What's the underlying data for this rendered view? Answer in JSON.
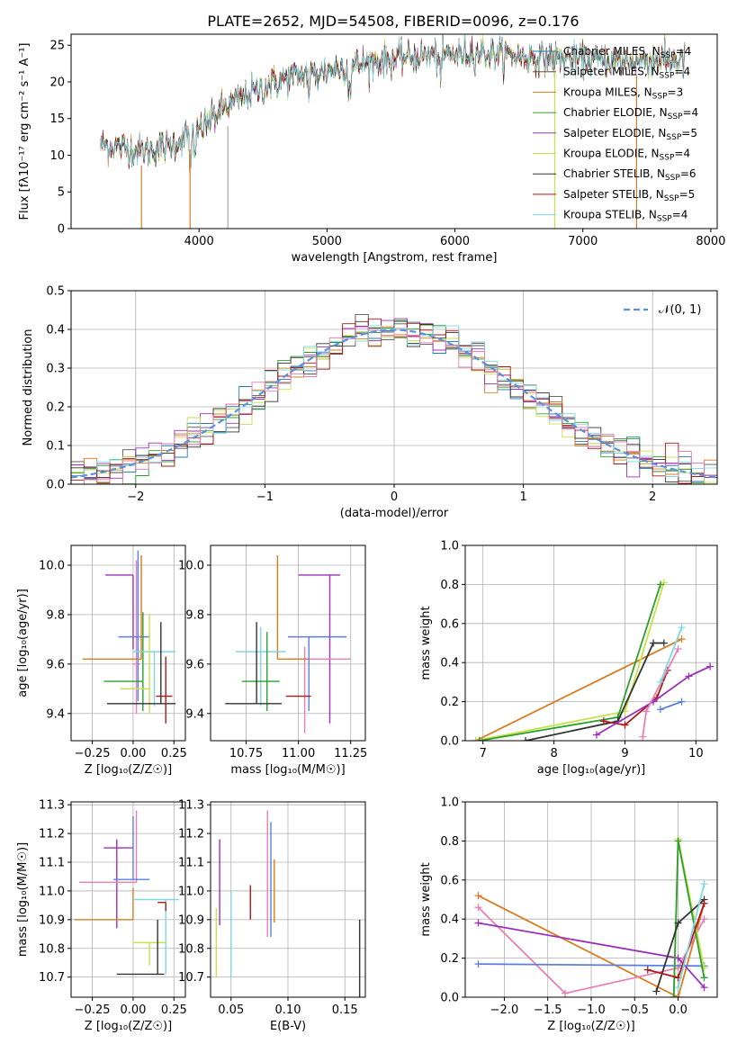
{
  "title": "PLATE=2652, MJD=54508, FIBERID=0096, z=0.176",
  "colors": {
    "chab_miles": "#1f77b4",
    "salp_miles": "#555555",
    "krou_miles": "#d97b1f",
    "chab_elodie": "#2ca02c",
    "salp_elodie": "#9b30b8",
    "krou_elodie": "#c8e04a",
    "chab_stelib": "#333333",
    "salp_stelib": "#b01818",
    "krou_stelib": "#7fd8e0",
    "pink": "#e77fb6",
    "blue": "#5b7fe0",
    "gauss": "#5b8fe0"
  },
  "chart_data": [
    {
      "type": "line",
      "id": "spectrum",
      "title": "PLATE=2652, MJD=54508, FIBERID=0096, z=0.176",
      "xlabel": "wavelength [Angstrom, rest frame]",
      "ylabel": "Flux [fλ10⁻¹⁷ erg cm⁻² s⁻¹ A⁻¹]",
      "xlim": [
        3000,
        8050
      ],
      "ylim": [
        0,
        26.5
      ],
      "xticks": [
        "4000",
        "5000",
        "6000",
        "7000",
        "8000"
      ],
      "yticks": [
        "0",
        "5",
        "10",
        "15",
        "20",
        "25"
      ],
      "legend_position": "right",
      "legend": [
        "Chabrier MILES, N_SSP=4",
        "Salpeter MILES, N_SSP=4",
        "Kroupa MILES, N_SSP=3",
        "Chabrier ELODIE, N_SSP=4",
        "Salpeter ELODIE, N_SSP=5",
        "Kroupa ELODIE, N_SSP=4",
        "Chabrier STELIB, N_SSP=6",
        "Salpeter STELIB, N_SSP=5",
        "Kroupa STELIB, N_SSP=4"
      ],
      "continuum": {
        "x": [
          3200,
          3400,
          3600,
          3800,
          4000,
          4200,
          4400,
          4600,
          4800,
          5000,
          5200,
          5400,
          5600,
          5800,
          6000,
          6200,
          6400,
          6600,
          6800,
          7000,
          7200,
          7400,
          7600,
          7800
        ],
        "y": [
          11.5,
          11.0,
          10.5,
          11.5,
          13.5,
          16.5,
          18.5,
          20.0,
          21.0,
          21.5,
          22.2,
          22.8,
          23.3,
          23.6,
          23.8,
          24.0,
          23.7,
          23.4,
          23.2,
          23.0,
          22.9,
          22.8,
          23.0,
          22.7
        ]
      },
      "drops": [
        3550,
        3930,
        6780,
        7420
      ]
    },
    {
      "type": "bar",
      "id": "residuals",
      "xlabel": "(data-model)/error",
      "ylabel": "Normed distribution",
      "xlim": [
        -2.5,
        2.5
      ],
      "ylim": [
        0,
        0.5
      ],
      "xticks": [
        "−2",
        "−1",
        "0",
        "1",
        "2"
      ],
      "yticks": [
        "0.0",
        "0.1",
        "0.2",
        "0.3",
        "0.4",
        "0.5"
      ],
      "bin_width": 0.1,
      "legend": [
        "𝒩(0, 1)"
      ],
      "legend_position": "top-right",
      "gaussian": {
        "mean": 0,
        "sigma": 1
      }
    },
    {
      "type": "scatter",
      "id": "age_vs_Z",
      "xlabel": "Z [log₁₀(Z/Z☉)]",
      "ylabel": "age  [log₁₀(age/yr)]",
      "xlim": [
        -0.38,
        0.32
      ],
      "ylim": [
        9.29,
        10.08
      ],
      "xticks": [
        "−0.25",
        "0.00",
        "0.25"
      ],
      "yticks": [
        "9.4",
        "9.6",
        "9.8",
        "10.0"
      ],
      "points": [
        {
          "color": "purple",
          "x": 0.0,
          "xerr": [
            0.17,
            0.0
          ],
          "y": 9.96,
          "yerr": [
            0.3,
            0.0
          ]
        },
        {
          "color": "pink",
          "x": 0.02,
          "xerr": [
            0.02,
            0.02
          ],
          "y": 9.6,
          "yerr": [
            0.2,
            0.42
          ]
        },
        {
          "color": "blue",
          "x": 0.03,
          "xerr": [
            0.12,
            0.07
          ],
          "y": 9.71,
          "yerr": [
            0.26,
            0.35
          ]
        },
        {
          "color": "orange",
          "x": 0.05,
          "xerr": [
            0.36,
            0.0
          ],
          "y": 9.62,
          "yerr": [
            0.0,
            0.42
          ]
        },
        {
          "color": "green",
          "x": 0.06,
          "xerr": [
            0.24,
            0.0
          ],
          "y": 9.53,
          "yerr": [
            0.12,
            0.28
          ]
        },
        {
          "color": "cyan",
          "x": 0.13,
          "xerr": [
            0.13,
            0.13
          ],
          "y": 9.65,
          "yerr": [
            0.22,
            0.0
          ]
        },
        {
          "color": "lime",
          "x": 0.1,
          "xerr": [
            0.18,
            0.0
          ],
          "y": 9.5,
          "yerr": [
            0.1,
            0.3
          ]
        },
        {
          "color": "dark",
          "x": 0.17,
          "xerr": [
            0.33,
            0.09
          ],
          "y": 9.44,
          "yerr": [
            0.0,
            0.33
          ]
        },
        {
          "color": "red",
          "x": 0.2,
          "xerr": [
            0.06,
            0.04
          ],
          "y": 9.47,
          "yerr": [
            0.11,
            0.16
          ]
        }
      ]
    },
    {
      "type": "scatter",
      "id": "age_vs_mass",
      "xlabel": "mass [log₁₀(M/M☉)]",
      "ylabel": "",
      "xlim": [
        10.58,
        11.32
      ],
      "ylim": [
        9.29,
        10.08
      ],
      "xticks": [
        "10.75",
        "11.00",
        "11.25"
      ],
      "yticks": [
        "9.4",
        "9.6",
        "9.8",
        "10.0"
      ],
      "points": [
        {
          "color": "purple",
          "x": 11.15,
          "xerr": [
            0.15,
            0.05
          ],
          "y": 9.96,
          "yerr": [
            0.6,
            0.0
          ]
        },
        {
          "color": "pink",
          "x": 11.03,
          "xerr": [
            0.08,
            0.22
          ],
          "y": 9.62,
          "yerr": [
            0.3,
            0.05
          ]
        },
        {
          "color": "blue",
          "x": 11.05,
          "xerr": [
            0.1,
            0.18
          ],
          "y": 9.71,
          "yerr": [
            0.3,
            0.0
          ]
        },
        {
          "color": "orange",
          "x": 10.9,
          "xerr": [
            0.0,
            0.15
          ],
          "y": 9.62,
          "yerr": [
            0.0,
            0.42
          ]
        },
        {
          "color": "cyan",
          "x": 10.82,
          "xerr": [
            0.12,
            0.12
          ],
          "y": 9.65,
          "yerr": [
            0.22,
            0.1
          ]
        },
        {
          "color": "green",
          "x": 10.85,
          "xerr": [
            0.12,
            0.06
          ],
          "y": 9.53,
          "yerr": [
            0.12,
            0.2
          ]
        },
        {
          "color": "dark",
          "x": 10.8,
          "xerr": [
            0.15,
            0.12
          ],
          "y": 9.44,
          "yerr": [
            0.0,
            0.33
          ]
        },
        {
          "color": "red",
          "x": 11.0,
          "xerr": [
            0.06,
            0.06
          ],
          "y": 9.47,
          "yerr": [
            0.0,
            0.0
          ]
        }
      ]
    },
    {
      "type": "line",
      "id": "mass_weight_vs_age",
      "xlabel": "age  [log₁₀(age/yr)]",
      "ylabel": "mass weight",
      "xlim": [
        6.75,
        10.3
      ],
      "ylim": [
        0,
        1
      ],
      "xticks": [
        "7",
        "8",
        "9",
        "10"
      ],
      "yticks": [
        "0.0",
        "0.2",
        "0.4",
        "0.6",
        "0.8",
        "1.0"
      ],
      "series": [
        {
          "color": "orange",
          "x": [
            6.9,
            9.8
          ],
          "y": [
            0.0,
            0.52
          ]
        },
        {
          "color": "lime",
          "x": [
            6.9,
            9.0,
            9.55
          ],
          "y": [
            0.0,
            0.15,
            0.81
          ]
        },
        {
          "color": "green",
          "x": [
            6.95,
            8.9,
            9.5
          ],
          "y": [
            0.0,
            0.12,
            0.8
          ]
        },
        {
          "color": "dark",
          "x": [
            7.6,
            8.9,
            9.4,
            9.55
          ],
          "y": [
            0.0,
            0.1,
            0.5,
            0.5
          ]
        },
        {
          "color": "red",
          "x": [
            8.7,
            9.0,
            9.45,
            9.6
          ],
          "y": [
            0.1,
            0.08,
            0.22,
            0.36
          ]
        },
        {
          "color": "purple",
          "x": [
            8.6,
            9.4,
            9.9,
            10.2
          ],
          "y": [
            0.03,
            0.2,
            0.33,
            0.38
          ]
        },
        {
          "color": "pink",
          "x": [
            9.25,
            9.3,
            9.75
          ],
          "y": [
            0.02,
            0.15,
            0.47
          ]
        },
        {
          "color": "blue",
          "x": [
            9.5,
            9.8
          ],
          "y": [
            0.16,
            0.2
          ]
        },
        {
          "color": "cyan",
          "x": [
            9.5,
            9.8
          ],
          "y": [
            0.3,
            0.58
          ]
        }
      ]
    },
    {
      "type": "scatter",
      "id": "mass_vs_Z",
      "xlabel": "Z [log₁₀(Z/Z☉)]",
      "ylabel": "mass [log₁₀(M/M☉)]",
      "xlim": [
        -0.38,
        0.32
      ],
      "ylim": [
        10.63,
        11.31
      ],
      "xticks": [
        "−0.25",
        "0.00",
        "0.25"
      ],
      "yticks": [
        "10.7",
        "10.8",
        "10.9",
        "11.0",
        "11.1",
        "11.2",
        "11.3"
      ],
      "points": [
        {
          "color": "purple",
          "x": -0.1,
          "xerr": [
            0.08,
            0.1
          ],
          "y": 11.15,
          "yerr": [
            0.28,
            0.03
          ]
        },
        {
          "color": "pink",
          "x": 0.02,
          "xerr": [
            0.35,
            0.0
          ],
          "y": 11.03,
          "yerr": [
            0.0,
            0.25
          ]
        },
        {
          "color": "blue",
          "x": 0.0,
          "xerr": [
            0.12,
            0.1
          ],
          "y": 11.04,
          "yerr": [
            0.0,
            0.22
          ]
        },
        {
          "color": "orange",
          "x": 0.0,
          "xerr": [
            0.36,
            0.0
          ],
          "y": 10.9,
          "yerr": [
            0.0,
            0.11
          ]
        },
        {
          "color": "cyan",
          "x": 0.2,
          "xerr": [
            0.2,
            0.08
          ],
          "y": 10.97,
          "yerr": [
            0.26,
            0.0
          ]
        },
        {
          "color": "lime",
          "x": 0.1,
          "xerr": [
            0.1,
            0.1
          ],
          "y": 10.82,
          "yerr": [
            0.08,
            0.0
          ]
        },
        {
          "color": "dark",
          "x": 0.15,
          "xerr": [
            0.25,
            0.04
          ],
          "y": 10.71,
          "yerr": [
            0.0,
            0.19
          ]
        },
        {
          "color": "red",
          "x": 0.2,
          "xerr": [
            0.05,
            0.0
          ],
          "y": 10.96,
          "yerr": [
            0.03,
            0.0
          ]
        }
      ]
    },
    {
      "type": "scatter",
      "id": "mass_vs_ebv",
      "xlabel": "E(B-V)",
      "ylabel": "",
      "xlim": [
        0.032,
        0.168
      ],
      "ylim": [
        10.63,
        11.31
      ],
      "xticks": [
        "0.05",
        "0.10",
        "0.15"
      ],
      "yticks": [
        "10.7",
        "10.8",
        "10.9",
        "11.0",
        "11.1",
        "11.2",
        "11.3"
      ],
      "points": [
        {
          "color": "purple",
          "x": 0.04,
          "xerr": [
            0.0,
            0.0
          ],
          "y": 11.03,
          "yerr": [
            0.15,
            0.15
          ]
        },
        {
          "color": "lime",
          "x": 0.037,
          "xerr": [
            0.0,
            0.0
          ],
          "y": 10.82,
          "yerr": [
            0.12,
            0.12
          ]
        },
        {
          "color": "cyan",
          "x": 0.05,
          "xerr": [
            0.0,
            0.0
          ],
          "y": 10.85,
          "yerr": [
            0.15,
            0.15
          ]
        },
        {
          "color": "red",
          "x": 0.067,
          "xerr": [
            0.0,
            0.0
          ],
          "y": 10.96,
          "yerr": [
            0.06,
            0.06
          ]
        },
        {
          "color": "pink",
          "x": 0.082,
          "xerr": [
            0.0,
            0.0
          ],
          "y": 11.06,
          "yerr": [
            0.22,
            0.22
          ]
        },
        {
          "color": "blue",
          "x": 0.085,
          "xerr": [
            0.0,
            0.0
          ],
          "y": 11.04,
          "yerr": [
            0.2,
            0.2
          ]
        },
        {
          "color": "orange",
          "x": 0.088,
          "xerr": [
            0.0,
            0.0
          ],
          "y": 11.0,
          "yerr": [
            0.11,
            0.11
          ]
        },
        {
          "color": "dark",
          "x": 0.163,
          "xerr": [
            0.0,
            0.0
          ],
          "y": 10.71,
          "yerr": [
            0.19,
            0.19
          ]
        }
      ]
    },
    {
      "type": "line",
      "id": "mass_weight_vs_Z",
      "xlabel": "Z [log₁₀(Z/Z☉)]",
      "ylabel": "mass weight",
      "xlim": [
        -2.45,
        0.45
      ],
      "ylim": [
        0,
        1
      ],
      "xticks": [
        "−2.0",
        "−1.5",
        "−1.0",
        "−0.5",
        "0.0"
      ],
      "yticks": [
        "0.0",
        "0.2",
        "0.4",
        "0.6",
        "0.8",
        "1.0"
      ],
      "series": [
        {
          "color": "orange",
          "x": [
            -2.3,
            0.0,
            0.3
          ],
          "y": [
            0.52,
            0.0,
            0.48
          ]
        },
        {
          "color": "pink",
          "x": [
            -2.3,
            -1.3,
            0.0,
            0.3
          ],
          "y": [
            0.46,
            0.02,
            0.15,
            0.4
          ]
        },
        {
          "color": "purple",
          "x": [
            -2.3,
            0.0,
            0.3
          ],
          "y": [
            0.38,
            0.2,
            0.05
          ]
        },
        {
          "color": "blue",
          "x": [
            -2.3,
            0.3
          ],
          "y": [
            0.17,
            0.16
          ]
        },
        {
          "color": "lime",
          "x": [
            -0.05,
            0.0,
            0.3
          ],
          "y": [
            0.0,
            0.81,
            0.15
          ]
        },
        {
          "color": "green",
          "x": [
            -0.05,
            0.0,
            0.3
          ],
          "y": [
            0.0,
            0.8,
            0.1
          ]
        },
        {
          "color": "dark",
          "x": [
            -0.25,
            0.0,
            0.3
          ],
          "y": [
            0.03,
            0.38,
            0.5
          ]
        },
        {
          "color": "red",
          "x": [
            -0.35,
            0.0,
            0.3
          ],
          "y": [
            0.14,
            0.1,
            0.48
          ]
        },
        {
          "color": "cyan",
          "x": [
            0.0,
            0.3
          ],
          "y": [
            0.05,
            0.58
          ]
        }
      ]
    }
  ]
}
